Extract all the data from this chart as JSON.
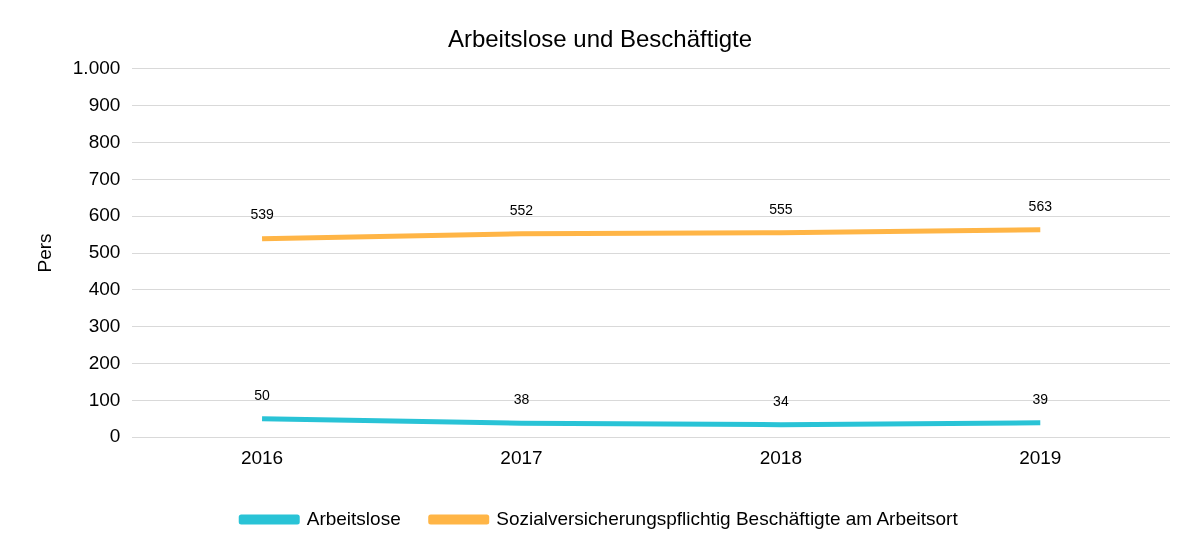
{
  "chart_data": {
    "type": "line",
    "title": "Arbeitslose und Beschäftigte",
    "ylabel": "Pers",
    "categories": [
      "2016",
      "2017",
      "2018",
      "2019"
    ],
    "series": [
      {
        "name": "Arbeitslose",
        "color": "#29c3d6",
        "values": [
          50,
          38,
          34,
          39
        ]
      },
      {
        "name": "Sozialversicherungspflichtig Beschäftigte am Arbeitsort",
        "color": "#ffb546",
        "values": [
          539,
          552,
          555,
          563
        ]
      }
    ],
    "ylim": [
      0,
      1000
    ],
    "yticks": [
      0,
      100,
      200,
      300,
      400,
      500,
      600,
      700,
      800,
      900,
      {
        "value": 1000,
        "label": "1.000"
      }
    ],
    "grid": "y",
    "legend": "bottom",
    "data_labels": true,
    "marker": "none",
    "line_style": "solid"
  }
}
